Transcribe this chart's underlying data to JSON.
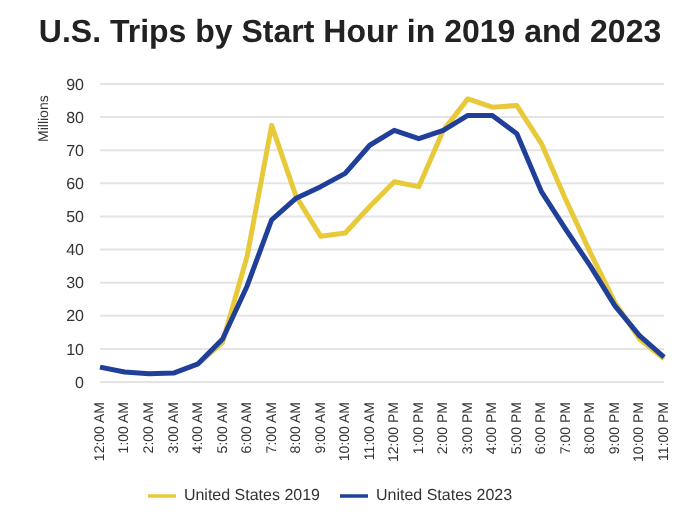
{
  "chart_data": {
    "type": "line",
    "title": "U.S. Trips by Start Hour in 2019 and 2023",
    "ylabel": "Millions",
    "categories": [
      "12:00 AM",
      "1:00 AM",
      "2:00 AM",
      "3:00 AM",
      "4:00 AM",
      "5:00 AM",
      "6:00 AM",
      "7:00 AM",
      "8:00 AM",
      "9:00 AM",
      "10:00 AM",
      "11:00 AM",
      "12:00 PM",
      "1:00 PM",
      "2:00 PM",
      "3:00 PM",
      "4:00 PM",
      "5:00 PM",
      "6:00 PM",
      "7:00 PM",
      "8:00 PM",
      "9:00 PM",
      "10:00 PM",
      "11:00 PM"
    ],
    "series": [
      {
        "name": "United States 2019",
        "color": "#e8c93a",
        "values": [
          null,
          null,
          null,
          null,
          5.5,
          12,
          38,
          77.5,
          56,
          44,
          45,
          53,
          60.5,
          59,
          76,
          85.5,
          83,
          83.5,
          72,
          55,
          39,
          24,
          13,
          7
        ]
      },
      {
        "name": "United States 2023",
        "color": "#1f3f99",
        "values": [
          4.5,
          3,
          2.5,
          2.7,
          5.5,
          13,
          29,
          49,
          55.5,
          59,
          63,
          71.5,
          76,
          73.5,
          76,
          80.5,
          80.5,
          75,
          57.5,
          46,
          35,
          23,
          14,
          7.5
        ]
      }
    ],
    "ylim": [
      0,
      90
    ],
    "yticks": [
      0,
      10,
      20,
      30,
      40,
      50,
      60,
      70,
      80,
      90
    ],
    "grid": "y",
    "legend": "bottom",
    "marker": "none",
    "line_style": "solid"
  }
}
